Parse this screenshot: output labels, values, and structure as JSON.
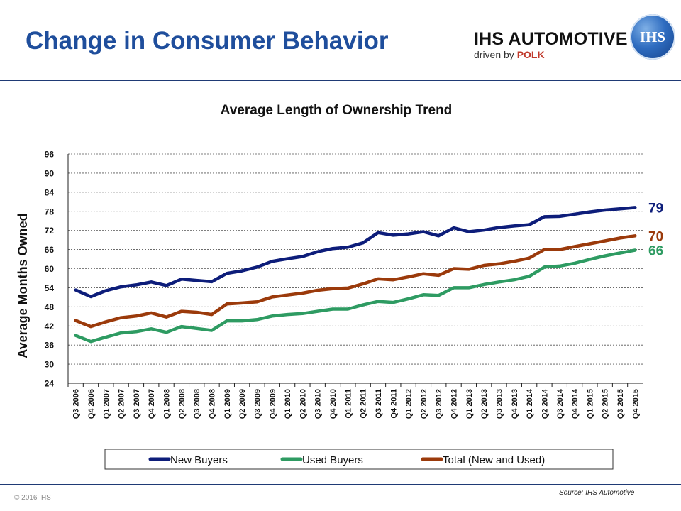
{
  "slide": {
    "title": "Change in Consumer Behavior",
    "brand_name": "IHS AUTOMOTIVE",
    "brand_tagline_prefix": "driven by ",
    "brand_tagline_emphasis": "POLK",
    "globe_logo_text": "IHS",
    "copyright": "© 2016 IHS",
    "source": "Source: IHS Automotive"
  },
  "chart_data": {
    "type": "line",
    "title": "Average Length of Ownership Trend",
    "xlabel": "",
    "ylabel": "Average Months Owned",
    "ylim": [
      24,
      96
    ],
    "yticks": [
      24,
      30,
      36,
      42,
      48,
      54,
      60,
      66,
      72,
      78,
      84,
      90,
      96
    ],
    "grid": "horizontal dashed",
    "legend_position": "bottom",
    "categories": [
      "Q3 2006",
      "Q4 2006",
      "Q1 2007",
      "Q2 2007",
      "Q3 2007",
      "Q4 2007",
      "Q1 2008",
      "Q2 2008",
      "Q3 2008",
      "Q4 2008",
      "Q1 2009",
      "Q2 2009",
      "Q3 2009",
      "Q4 2009",
      "Q1 2010",
      "Q2 2010",
      "Q3 2010",
      "Q4 2010",
      "Q1 2011",
      "Q2 2011",
      "Q3 2011",
      "Q4 2011",
      "Q1 2012",
      "Q2 2012",
      "Q3 2012",
      "Q4 2012",
      "Q1 2013",
      "Q2 2013",
      "Q3 2013",
      "Q4 2013",
      "Q1 2014",
      "Q2 2014",
      "Q3 2014",
      "Q4 2014",
      "Q1 2015",
      "Q2 2015",
      "Q3 2015",
      "Q4 2015"
    ],
    "series": [
      {
        "name": "New Buyers",
        "color": "#0d1d7a",
        "end_label": "79",
        "values": [
          53.3,
          51.2,
          53.1,
          54.3,
          54.9,
          55.8,
          54.7,
          56.7,
          56.3,
          55.9,
          58.5,
          59.3,
          60.5,
          62.3,
          63.1,
          63.8,
          65.3,
          66.3,
          66.7,
          68.1,
          71.3,
          70.5,
          70.9,
          71.6,
          70.3,
          72.8,
          71.6,
          72.1,
          72.9,
          73.4,
          73.8,
          76.3,
          76.4,
          77.1,
          77.8,
          78.4,
          78.8,
          79.2
        ]
      },
      {
        "name": "Used Buyers",
        "color": "#2e9b62",
        "end_label": "66",
        "values": [
          39.0,
          37.1,
          38.5,
          39.8,
          40.2,
          41.1,
          40.0,
          41.8,
          41.2,
          40.6,
          43.6,
          43.6,
          44.0,
          45.1,
          45.6,
          45.9,
          46.6,
          47.3,
          47.3,
          48.6,
          49.7,
          49.4,
          50.5,
          51.8,
          51.6,
          54.0,
          54.0,
          55.0,
          55.8,
          56.5,
          57.6,
          60.5,
          60.8,
          61.7,
          62.9,
          64.0,
          64.9,
          65.8
        ]
      },
      {
        "name": "Total (New and Used)",
        "color": "#9b3a0b",
        "end_label": "70",
        "values": [
          43.7,
          41.8,
          43.3,
          44.6,
          45.1,
          46.1,
          44.8,
          46.6,
          46.3,
          45.6,
          48.9,
          49.2,
          49.6,
          51.1,
          51.7,
          52.3,
          53.2,
          53.7,
          53.9,
          55.2,
          56.8,
          56.5,
          57.4,
          58.4,
          57.9,
          60.0,
          59.8,
          61.0,
          61.5,
          62.3,
          63.3,
          66.0,
          66.0,
          66.9,
          67.8,
          68.7,
          69.6,
          70.3
        ]
      }
    ]
  }
}
